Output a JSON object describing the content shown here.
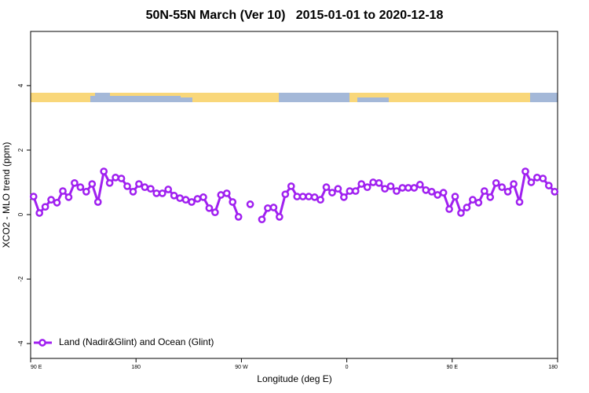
{
  "chart_data": {
    "type": "line",
    "title": "50N-55N March (Ver 10)   2015-01-01 to 2020-12-18",
    "xlabel": "Longitude (deg E)",
    "ylabel": "XCO2 - MLO trend (ppm)",
    "x": [
      92.5,
      97.5,
      102.5,
      107.5,
      112.5,
      117.5,
      122.5,
      127.5,
      132.5,
      137.5,
      142.5,
      147.5,
      152.5,
      157.5,
      162.5,
      167.5,
      172.5,
      177.5,
      182.5,
      187.5,
      192.5,
      197.5,
      202.5,
      207.5,
      212.5,
      217.5,
      222.5,
      227.5,
      232.5,
      237.5,
      242.5,
      247.5,
      252.5,
      257.5,
      262.5,
      267.5,
      272.5,
      277.5,
      282.5,
      287.5,
      292.5,
      297.5,
      302.5,
      307.5,
      312.5,
      317.5,
      322.5,
      327.5,
      332.5,
      337.5,
      342.5,
      347.5,
      352.5,
      357.5,
      362.5,
      367.5,
      372.5,
      377.5,
      382.5,
      387.5,
      392.5,
      397.5,
      402.5,
      407.5,
      412.5,
      417.5,
      422.5,
      427.5,
      432.5,
      437.5,
      442.5,
      447.5,
      452.5,
      457.5,
      462.5,
      467.5,
      472.5,
      477.5,
      482.5,
      487.5,
      492.5,
      497.5,
      502.5,
      507.5,
      512.5,
      517.5,
      522.5,
      527.5,
      532.5,
      537.5
    ],
    "series": [
      {
        "name": "Land (Nadir&Glint) and Ocean (Glint)",
        "color": "#a020f0",
        "values": [
          0.56,
          0.05,
          0.24,
          0.46,
          0.37,
          0.73,
          0.54,
          0.98,
          0.85,
          0.71,
          0.95,
          0.39,
          1.34,
          0.98,
          1.15,
          1.12,
          0.88,
          0.71,
          0.95,
          0.85,
          0.8,
          0.66,
          0.66,
          0.78,
          0.59,
          0.51,
          0.46,
          0.39,
          0.49,
          0.54,
          0.2,
          0.07,
          0.61,
          0.66,
          0.39,
          -0.07,
          null,
          0.32,
          null,
          -0.15,
          0.2,
          0.22,
          -0.07,
          0.63,
          0.88,
          0.56,
          0.56,
          0.56,
          0.54,
          0.46,
          0.85,
          0.68,
          0.8,
          0.54,
          0.73,
          0.73,
          0.95,
          0.85,
          1.0,
          0.98,
          0.8,
          0.88,
          0.73,
          0.83,
          0.83,
          0.83,
          0.93,
          0.76,
          0.71,
          0.61,
          0.68,
          0.17,
          0.56,
          0.05,
          0.22,
          0.46,
          0.37,
          0.73,
          0.54,
          0.98,
          0.85,
          0.71,
          0.95,
          0.39,
          1.34,
          1.0,
          1.15,
          1.12,
          0.9,
          0.71
        ]
      }
    ],
    "xlim": [
      90,
      540
    ],
    "xticks": [
      {
        "value": 90,
        "label": "90 E"
      },
      180,
      {
        "value": 270,
        "label": "90 W"
      },
      {
        "value": 360,
        "label": "0"
      },
      {
        "value": 450,
        "label": "90 E"
      },
      {
        "value": 540,
        "label": "180"
      }
    ],
    "ylim": [
      -4.46,
      5.68
    ],
    "yticks": [
      -4,
      -2,
      0,
      2,
      4
    ],
    "grid": false,
    "legend": "bottom-left"
  }
}
